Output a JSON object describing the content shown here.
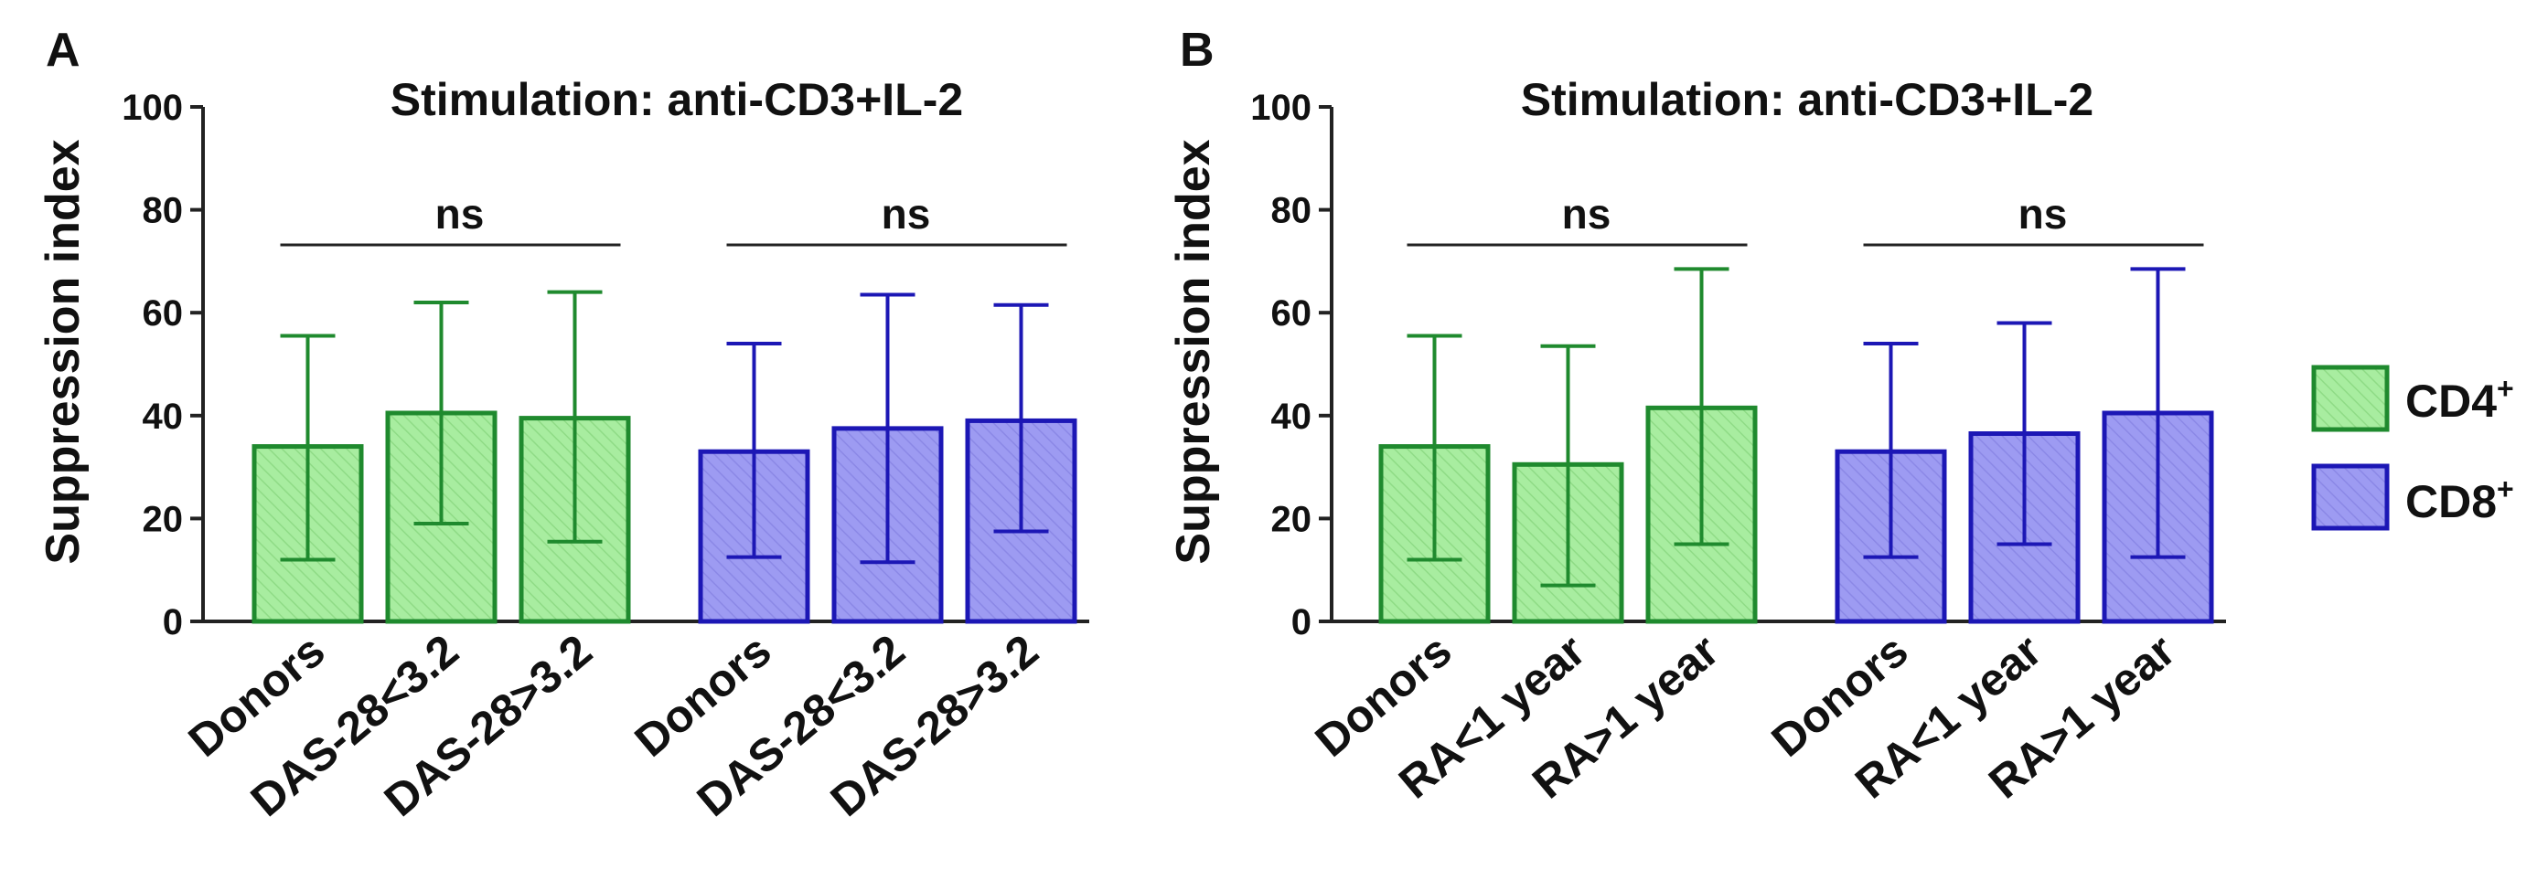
{
  "chart_data": [
    {
      "panel": "A",
      "type": "bar",
      "title": "Stimulation: anti-CD3+IL-2",
      "ylabel": "Suppression index",
      "ylim": [
        0,
        100
      ],
      "yticks": [
        0,
        20,
        40,
        60,
        80,
        100
      ],
      "error_bars": "SD",
      "groups": [
        {
          "series": "CD4+",
          "significance": "ns",
          "categories": [
            "Donors",
            "DAS-28<3.2",
            "DAS-28>3.2"
          ],
          "values": [
            34,
            40.5,
            39.5
          ],
          "err_low": [
            12,
            19,
            15.5
          ],
          "err_high": [
            55.5,
            62,
            64
          ]
        },
        {
          "series": "CD8+",
          "significance": "ns",
          "categories": [
            "Donors",
            "DAS-28<3.2",
            "DAS-28>3.2"
          ],
          "values": [
            33,
            37.5,
            39
          ],
          "err_low": [
            12.5,
            11.5,
            17.5
          ],
          "err_high": [
            54,
            63.5,
            61.5
          ]
        }
      ]
    },
    {
      "panel": "B",
      "type": "bar",
      "title": "Stimulation: anti-CD3+IL-2",
      "ylabel": "Suppression index",
      "ylim": [
        0,
        100
      ],
      "yticks": [
        0,
        20,
        40,
        60,
        80,
        100
      ],
      "error_bars": "SD",
      "groups": [
        {
          "series": "CD4+",
          "significance": "ns",
          "categories": [
            "Donors",
            "RA<1 year",
            "RA>1 year"
          ],
          "values": [
            34,
            30.5,
            41.5
          ],
          "err_low": [
            12,
            7,
            15
          ],
          "err_high": [
            55.5,
            53.5,
            68.5
          ]
        },
        {
          "series": "CD8+",
          "significance": "ns",
          "categories": [
            "Donors",
            "RA<1 year",
            "RA>1 year"
          ],
          "values": [
            33,
            36.5,
            40.5
          ],
          "err_low": [
            12.5,
            15,
            12.5
          ],
          "err_high": [
            54,
            58,
            68.5
          ]
        }
      ]
    }
  ],
  "legend": [
    {
      "label": "CD4",
      "superscript": "+",
      "fill": "#a8eda0",
      "stroke": "#1f8a2e",
      "error_color": "#1f8a2e"
    },
    {
      "label": "CD8",
      "superscript": "+",
      "fill": "#9d9bf2",
      "stroke": "#1c17b5",
      "error_color": "#1c17b5"
    }
  ],
  "axis_color": "#222222"
}
